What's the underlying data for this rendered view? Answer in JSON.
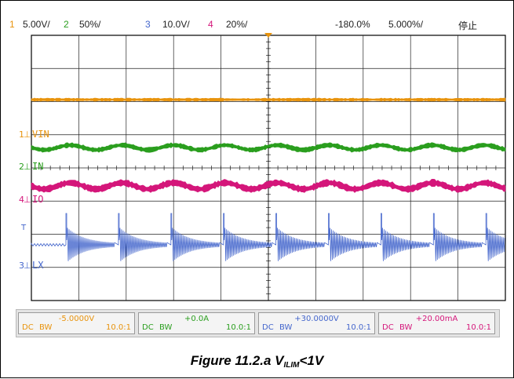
{
  "header": {
    "ch1_num": "1",
    "ch1_scale": "5.00V/",
    "ch2_num": "2",
    "ch2_scale": "50%/",
    "ch3_num": "3",
    "ch3_scale": "10.0V/",
    "ch4_num": "4",
    "ch4_scale": "20%/",
    "trigger_pos": "-180.0%",
    "timebase": "5.000%/",
    "status": "停止"
  },
  "markers": {
    "vin": "VIN",
    "in": "IN",
    "io": "IO",
    "lx": "LX",
    "ch1": "1",
    "ch2": "2",
    "ch3": "3",
    "ch4": "4",
    "trig": "T"
  },
  "channels": [
    {
      "offset": "-5.0000V",
      "coupling": "DC",
      "bw": "BW",
      "probe": "10.0:1",
      "color": "#e8930c"
    },
    {
      "offset": "+0.0A",
      "coupling": "DC",
      "bw": "BW",
      "probe": "10.0:1",
      "color": "#2a9e1e"
    },
    {
      "offset": "+30.0000V",
      "coupling": "DC",
      "bw": "BW",
      "probe": "10.0:1",
      "color": "#4466cc"
    },
    {
      "offset": "+20.00mA",
      "coupling": "DC",
      "bw": "BW",
      "probe": "10.0:1",
      "color": "#d4167a"
    }
  ],
  "caption": {
    "prefix": "Figure 11.2.a    V",
    "sub": "ILIM",
    "suffix": "<1V"
  },
  "colors": {
    "ch1": "#e8930c",
    "ch2": "#2a9e1e",
    "ch3": "#4466cc",
    "ch4": "#d4167a",
    "grid": "#000000"
  }
}
